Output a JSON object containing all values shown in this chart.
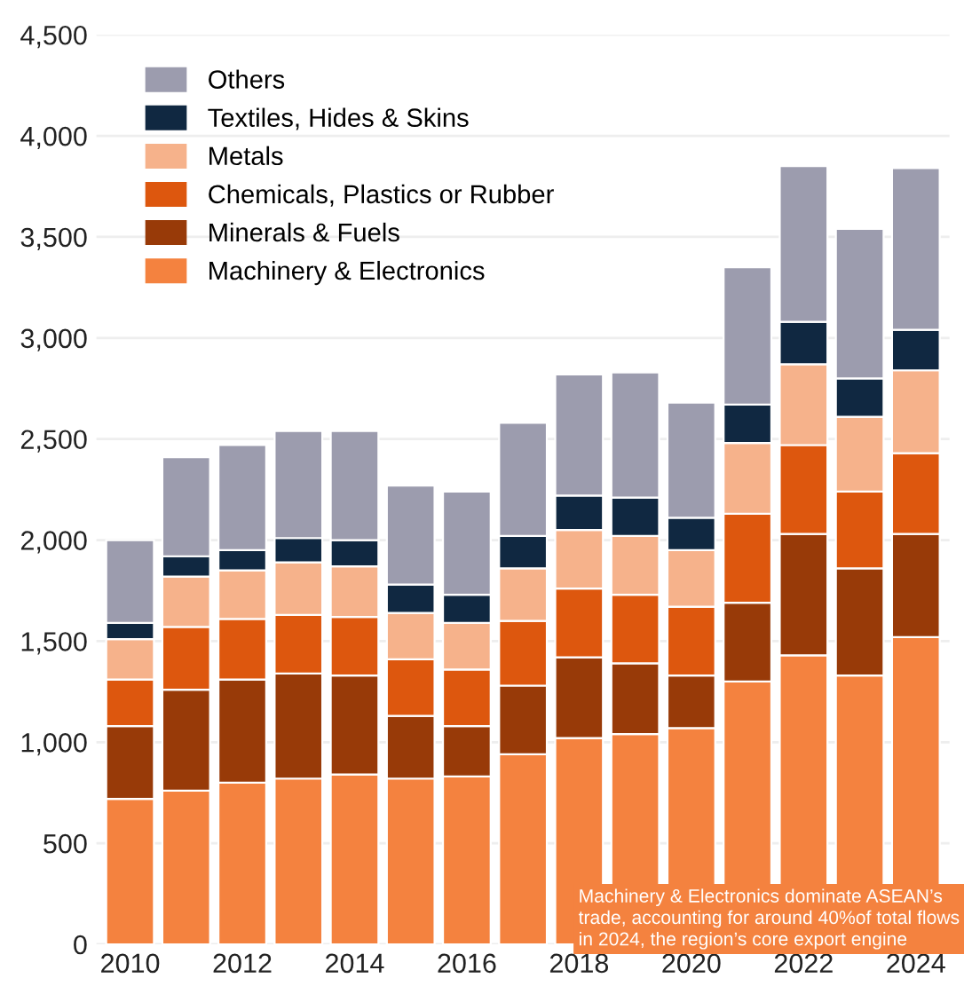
{
  "chart_data": {
    "type": "bar",
    "stacked": true,
    "categories": [
      "2010",
      null,
      "2012",
      null,
      "2014",
      null,
      "2016",
      null,
      "2018",
      null,
      "2020",
      null,
      "2022",
      null,
      "2024"
    ],
    "series": [
      {
        "name": "Machinery & Electronics",
        "color": "#f4823f",
        "values": [
          720,
          760,
          800,
          820,
          840,
          820,
          830,
          940,
          1020,
          1040,
          1070,
          1300,
          1430,
          1330,
          1520
        ]
      },
      {
        "name": "Minerals & Fuels",
        "color": "#983a08",
        "values": [
          360,
          500,
          510,
          520,
          490,
          310,
          250,
          340,
          400,
          350,
          260,
          390,
          600,
          530,
          510
        ]
      },
      {
        "name": "Chemicals, Plastics or Rubber",
        "color": "#dd570e",
        "values": [
          230,
          310,
          300,
          290,
          290,
          280,
          280,
          320,
          340,
          340,
          340,
          440,
          440,
          380,
          400
        ]
      },
      {
        "name": "Metals",
        "color": "#f6b28b",
        "values": [
          200,
          250,
          240,
          260,
          250,
          230,
          230,
          260,
          290,
          290,
          280,
          350,
          400,
          370,
          410
        ]
      },
      {
        "name": "Textiles, Hides & Skins",
        "color": "#102841",
        "values": [
          80,
          100,
          100,
          120,
          130,
          140,
          140,
          160,
          170,
          190,
          160,
          190,
          210,
          190,
          200
        ]
      },
      {
        "name": "Others",
        "color": "#9c9cae",
        "values": [
          410,
          490,
          520,
          530,
          540,
          490,
          510,
          560,
          600,
          620,
          570,
          680,
          770,
          740,
          800
        ]
      }
    ],
    "ylim": [
      0,
      4500
    ],
    "yticks": [
      0,
      500,
      {
        "value": 1000,
        "label": "1,000"
      },
      {
        "value": 1500,
        "label": "1,500"
      },
      {
        "value": 2000,
        "label": "2,000"
      },
      {
        "value": 2500,
        "label": "2,500"
      },
      {
        "value": 3000,
        "label": "3,000"
      },
      {
        "value": 3500,
        "label": "3,500"
      },
      {
        "value": 4000,
        "label": "4,000"
      },
      {
        "value": 4500,
        "label": "4,500"
      }
    ],
    "grid": "y",
    "legend": "top left",
    "annotations": [
      "Machinery & Electronics dominate ASEAN’s trade, accounting for around 40%of total flows in 2024, the region’s core export engine"
    ]
  }
}
